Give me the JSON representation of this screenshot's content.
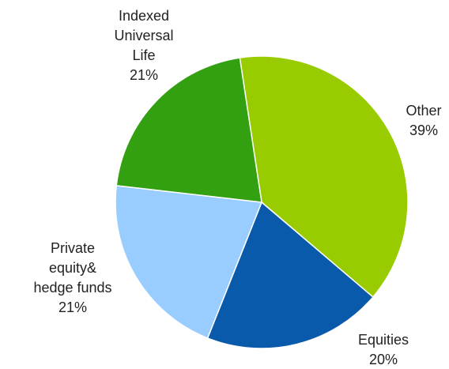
{
  "chart_data": {
    "type": "pie",
    "categories": [
      "Other",
      "Equities",
      "Private\nequity&\nhedge funds",
      "Indexed\nUniversal\nLife"
    ],
    "values": [
      39,
      20,
      21,
      21
    ],
    "value_labels": [
      "39%",
      "20%",
      "21%",
      "21%"
    ],
    "colors": [
      "#99cc00",
      "#0a5aab",
      "#99ccff",
      "#33a011"
    ]
  }
}
